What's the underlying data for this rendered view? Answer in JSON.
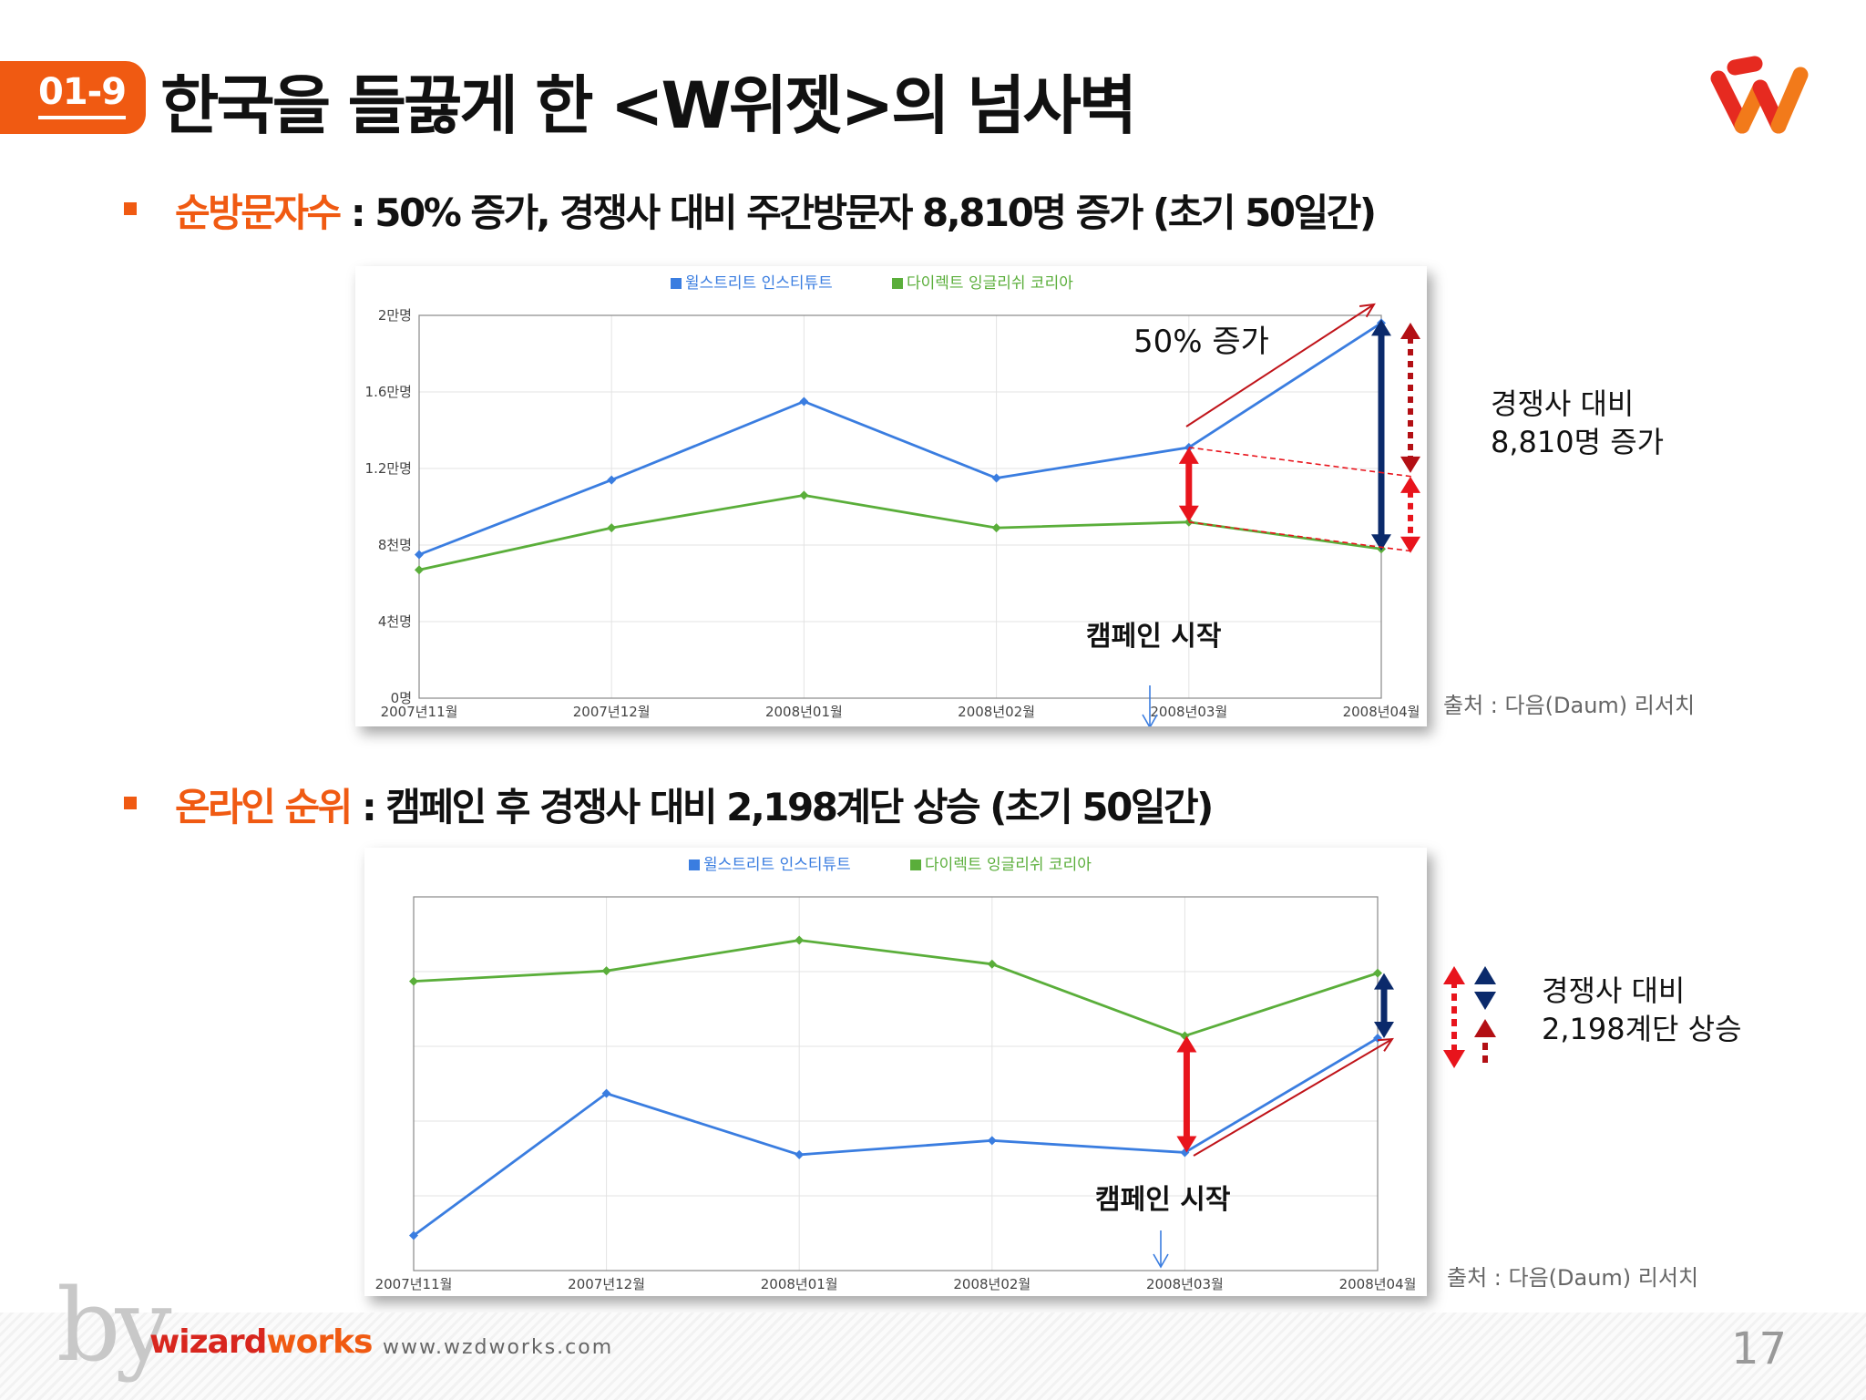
{
  "header": {
    "badge": "01-9",
    "title": "한국을 들끓게 한 <W위젯>의 넘사벽"
  },
  "sections": [
    {
      "highlight": "순방문자수",
      "text": " : 50% 증가, 경쟁사 대비 주간방문자 8,810명 증가 (초기 50일간)"
    },
    {
      "highlight": "온라인 순위",
      "text": " : 캠페인 후 경쟁사 대비 2,198계단 상승 (초기 50일간)"
    }
  ],
  "chart1_annotations": {
    "growth": "50% 증가",
    "campaign": "캠페인 시작",
    "side_note_1": "경쟁사 대비",
    "side_note_2": "8,810명 증가",
    "source": "출처 : 다음(Daum) 리서치"
  },
  "chart2_annotations": {
    "campaign": "캠페인 시작",
    "side_note_1": "경쟁사 대비",
    "side_note_2": "2,198계단 상승",
    "source": "출처 : 다음(Daum) 리서치"
  },
  "colors": {
    "accent": "#f05a12",
    "series_blue": "#3a7de0",
    "series_green": "#5aae3a",
    "arrow_red": "#e8141c",
    "arrow_navy": "#0b2a6b"
  },
  "footer": {
    "by": "by",
    "brand_1": "wizard",
    "brand_2": "works",
    "url": "www.wzdworks.com",
    "page": "17"
  },
  "chart_data": [
    {
      "type": "line",
      "categories": [
        "2007년11월",
        "2007년12월",
        "2008년01월",
        "2008년02월",
        "2008년03월",
        "2008년04월"
      ],
      "y_tick_labels": [
        "0명",
        "4천명",
        "8천명",
        "1.2만명",
        "1.6만명",
        "2만명"
      ],
      "ylim": [
        0,
        20000
      ],
      "series": [
        {
          "name": "윌스트리트 인스티튜트",
          "color": "#3a7de0",
          "values": [
            7500,
            11400,
            15500,
            11500,
            13100,
            19600
          ]
        },
        {
          "name": "다이렉트 잉글리쉬 코리아",
          "color": "#5aae3a",
          "values": [
            6700,
            8900,
            10600,
            8900,
            9200,
            7800
          ]
        }
      ],
      "grid": true,
      "legend": "top-center"
    },
    {
      "type": "line",
      "categories": [
        "2007년11월",
        "2007년12월",
        "2008년01월",
        "2008년02월",
        "2008년03월",
        "2008년04월"
      ],
      "y_axis": "rank (inverted, unlabeled)",
      "ylim": [
        0,
        5
      ],
      "series": [
        {
          "name": "윌스트리트 인스티튜트",
          "color": "#3a7de0",
          "values": [
            0.47,
            2.37,
            1.55,
            1.74,
            1.58,
            3.11
          ]
        },
        {
          "name": "다이렉트 잉글리쉬 코리아",
          "color": "#5aae3a",
          "values": [
            3.87,
            4.01,
            4.42,
            4.1,
            3.14,
            3.98
          ]
        }
      ],
      "grid": true,
      "legend": "top-center"
    }
  ]
}
